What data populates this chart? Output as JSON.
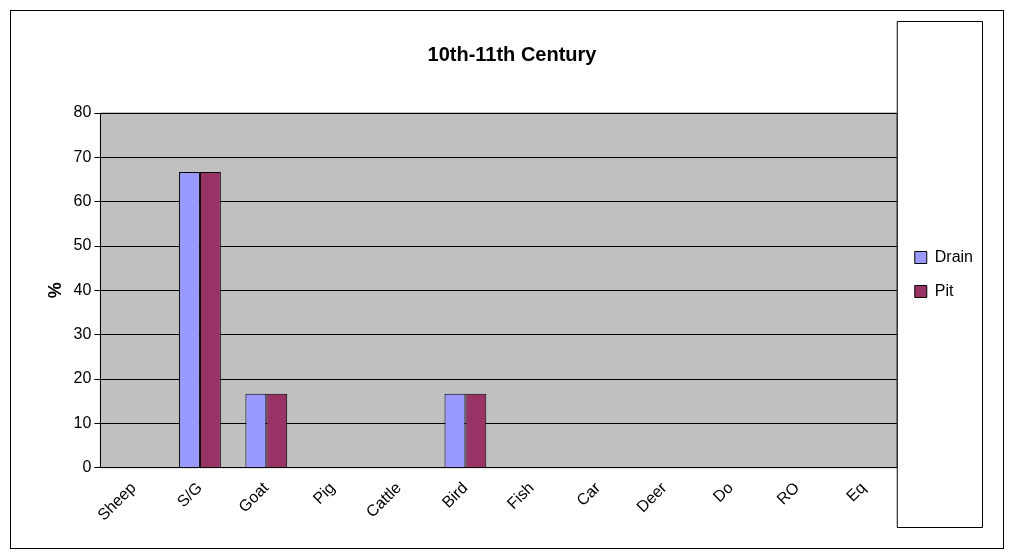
{
  "chart_data": {
    "type": "bar",
    "title": "10th-11th Century",
    "ylabel": "%",
    "categories": [
      "Sheep",
      "S/G",
      "Goat",
      "Pig",
      "Cattle",
      "Bird",
      "Fish",
      "Car",
      "Deer",
      "Do",
      "RO",
      "Eq"
    ],
    "series": [
      {
        "name": "Drain",
        "color": "#9999ff",
        "values": [
          0,
          66.7,
          16.7,
          0,
          0,
          16.7,
          0,
          0,
          0,
          0,
          0,
          0
        ]
      },
      {
        "name": "Pit",
        "color": "#993366",
        "values": [
          0,
          66.7,
          16.7,
          0,
          0,
          16.7,
          0,
          0,
          0,
          0,
          0,
          0
        ]
      }
    ],
    "ylim": [
      0,
      80
    ],
    "yticks": [
      0,
      10,
      20,
      30,
      40,
      50,
      60,
      70,
      80
    ],
    "grid": "y",
    "legend": "right"
  }
}
